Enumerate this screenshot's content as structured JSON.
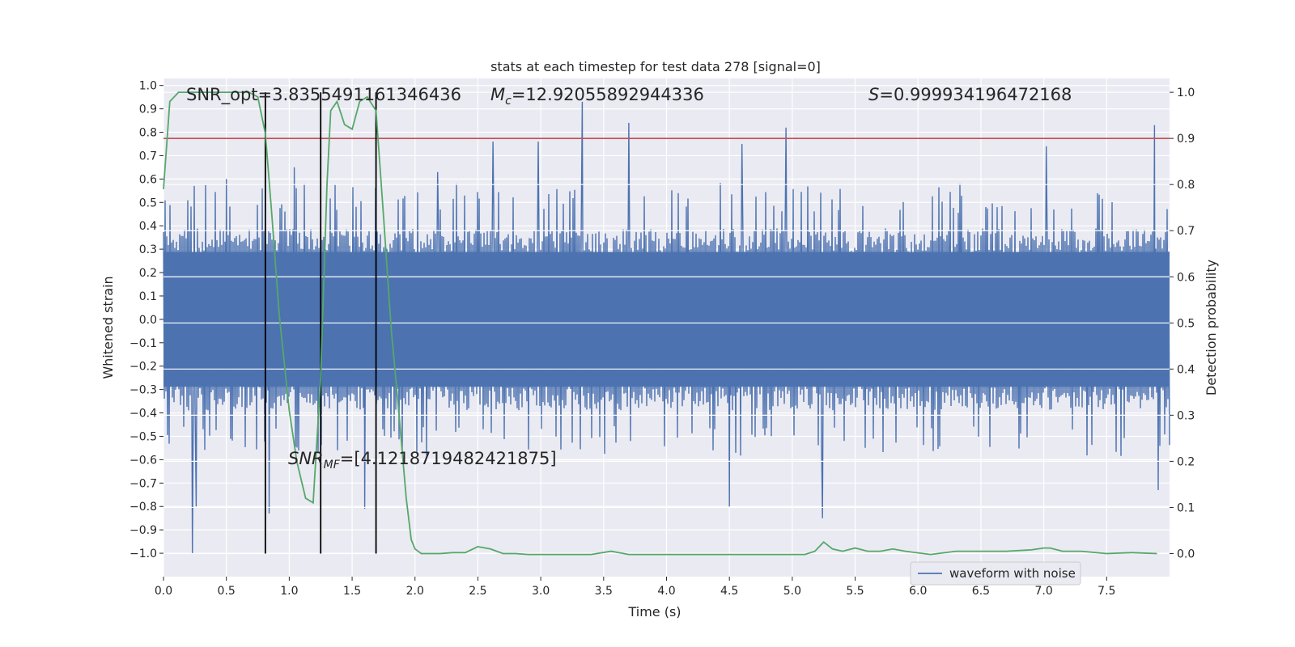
{
  "chart_data": {
    "type": "line",
    "title": "stats at each timestep for test data 278 [signal=0]",
    "xlabel": "Time (s)",
    "ylabel_left": "Whitened strain",
    "ylabel_right": "Detection probability",
    "xlim": [
      0.0,
      8.0
    ],
    "ylim_left": [
      -1.1,
      1.03
    ],
    "ylim_right": [
      -0.05,
      1.03
    ],
    "x_ticks": [
      0.0,
      0.5,
      1.0,
      1.5,
      2.0,
      2.5,
      3.0,
      3.5,
      4.0,
      4.5,
      5.0,
      5.5,
      6.0,
      6.5,
      7.0,
      7.5
    ],
    "x_tick_labels": [
      "0.0",
      "0.5",
      "1.0",
      "1.5",
      "2.0",
      "2.5",
      "3.0",
      "3.5",
      "4.0",
      "4.5",
      "5.0",
      "5.5",
      "6.0",
      "6.5",
      "7.0",
      "7.5"
    ],
    "y_left_ticks": [
      1.0,
      0.9,
      0.8,
      0.7,
      0.6,
      0.5,
      0.4,
      0.3,
      0.2,
      0.1,
      0.0,
      -0.1,
      -0.2,
      -0.3,
      -0.4,
      -0.5,
      -0.6,
      -0.7,
      -0.8,
      -0.9,
      -1.0
    ],
    "y_left_tick_labels": [
      "1.0",
      "0.9",
      "0.8",
      "0.7",
      "0.6",
      "0.5",
      "0.4",
      "0.3",
      "0.2",
      "0.1",
      "0.0",
      "−0.1",
      "−0.2",
      "−0.3",
      "−0.4",
      "−0.5",
      "−0.6",
      "−0.7",
      "−0.8",
      "−0.9",
      "−1.0"
    ],
    "y_right_ticks": [
      1.0,
      0.9,
      0.8,
      0.7,
      0.6,
      0.5,
      0.4,
      0.3,
      0.2,
      0.1,
      0.0
    ],
    "y_right_tick_labels": [
      "1.0",
      "0.9",
      "0.8",
      "0.7",
      "0.6",
      "0.5",
      "0.4",
      "0.3",
      "0.2",
      "0.1",
      "0.0"
    ],
    "annotations": {
      "snr_opt": "SNR_opt=3.8355491161346436",
      "mc_symbol": "M",
      "mc_sub": "c",
      "mc_value": "=12.92055892944336",
      "s_symbol": "S",
      "s_value": "=0.999934196472168",
      "snr_mf_symbol": "SNR",
      "snr_mf_sub": "MF",
      "snr_mf_value": "=[4.1218719482421875]"
    },
    "threshold": {
      "axis": "right",
      "value": 0.9,
      "color": "#c44e52"
    },
    "vlines": [
      0.81,
      1.25,
      1.69
    ],
    "series": [
      {
        "name": "waveform with noise",
        "axis": "left",
        "color": "#4c72b0",
        "kind": "noise",
        "core_amplitude": 0.36,
        "typical_peak": 0.52,
        "spikes": [
          {
            "x": 0.23,
            "y": -1.0
          },
          {
            "x": 0.26,
            "y": -0.8
          },
          {
            "x": 0.5,
            "y": 0.6
          },
          {
            "x": 0.84,
            "y": -0.83
          },
          {
            "x": 1.04,
            "y": 0.65
          },
          {
            "x": 1.6,
            "y": -0.81
          },
          {
            "x": 2.18,
            "y": 0.63
          },
          {
            "x": 2.62,
            "y": 0.76
          },
          {
            "x": 2.98,
            "y": 0.76
          },
          {
            "x": 3.33,
            "y": 0.93
          },
          {
            "x": 3.7,
            "y": 0.84
          },
          {
            "x": 4.5,
            "y": -0.8
          },
          {
            "x": 4.6,
            "y": 0.75
          },
          {
            "x": 4.95,
            "y": 0.82
          },
          {
            "x": 5.24,
            "y": -0.85
          },
          {
            "x": 7.02,
            "y": 0.74
          },
          {
            "x": 7.88,
            "y": 0.83
          },
          {
            "x": 7.91,
            "y": -0.73
          }
        ]
      },
      {
        "name": "Detection probability",
        "axis": "right",
        "color": "#55a868",
        "x": [
          0.0,
          0.05,
          0.12,
          0.2,
          0.3,
          0.4,
          0.5,
          0.6,
          0.68,
          0.75,
          0.81,
          0.86,
          0.92,
          1.0,
          1.06,
          1.13,
          1.19,
          1.25,
          1.3,
          1.33,
          1.38,
          1.44,
          1.5,
          1.56,
          1.62,
          1.69,
          1.75,
          1.81,
          1.87,
          1.93,
          1.97,
          2.0,
          2.05,
          2.1,
          2.2,
          2.3,
          2.4,
          2.5,
          2.6,
          2.7,
          2.8,
          2.9,
          3.0,
          3.2,
          3.4,
          3.56,
          3.7,
          3.9,
          4.1,
          4.3,
          4.5,
          4.7,
          4.9,
          5.1,
          5.18,
          5.25,
          5.32,
          5.4,
          5.5,
          5.6,
          5.7,
          5.8,
          5.9,
          6.1,
          6.3,
          6.4,
          6.5,
          6.6,
          6.7,
          6.9,
          7.0,
          7.05,
          7.15,
          7.3,
          7.5,
          7.7,
          7.9
        ],
        "y": [
          0.79,
          0.98,
          1.0,
          1.0,
          1.0,
          1.0,
          1.0,
          1.0,
          1.0,
          0.99,
          0.91,
          0.74,
          0.52,
          0.31,
          0.2,
          0.12,
          0.11,
          0.38,
          0.8,
          0.96,
          0.98,
          0.93,
          0.92,
          0.98,
          0.99,
          0.96,
          0.73,
          0.49,
          0.31,
          0.12,
          0.03,
          0.01,
          0.0,
          0.0,
          0.0,
          0.002,
          0.002,
          0.015,
          0.01,
          0.0,
          0.0,
          -0.002,
          -0.002,
          -0.002,
          -0.002,
          0.005,
          -0.002,
          -0.002,
          -0.002,
          -0.002,
          -0.002,
          -0.002,
          -0.002,
          -0.002,
          0.005,
          0.025,
          0.01,
          0.005,
          0.012,
          0.005,
          0.005,
          0.01,
          0.005,
          -0.002,
          0.005,
          0.005,
          0.005,
          0.005,
          0.005,
          0.008,
          0.012,
          0.012,
          0.005,
          0.005,
          0.0,
          0.002,
          0.0
        ]
      }
    ],
    "legend": {
      "position": "lower-right",
      "label": "waveform with noise"
    }
  }
}
